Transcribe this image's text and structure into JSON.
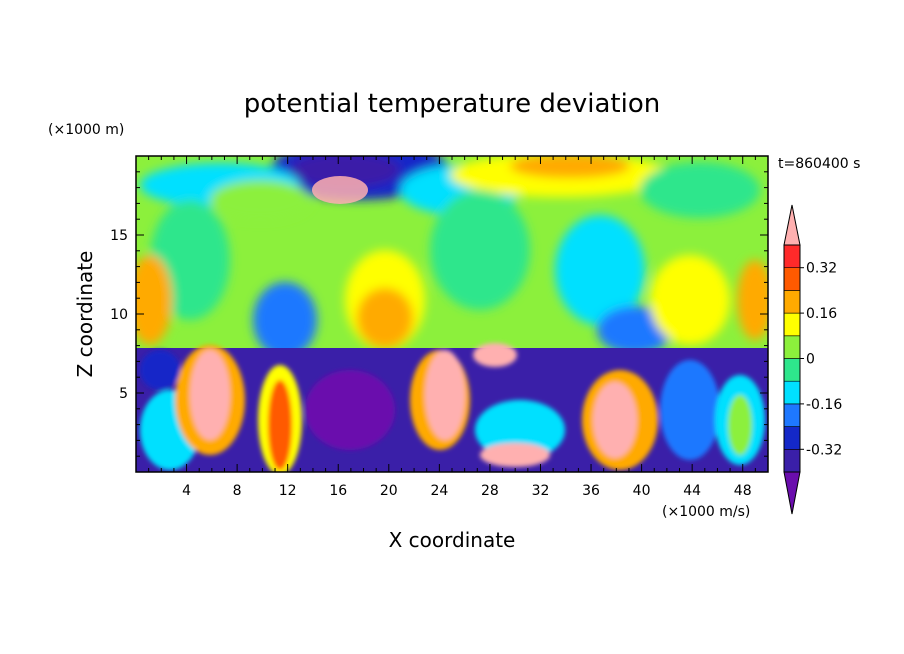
{
  "chart_data": {
    "type": "heatmap",
    "title": "potential temperature deviation",
    "xlabel": "X coordinate",
    "ylabel": "Z coordinate",
    "x_unit": "(×1000 m/s)",
    "y_unit": "(×1000 m)",
    "time_label": "t=860400 s",
    "xlim": [
      0,
      50
    ],
    "ylim": [
      0,
      20
    ],
    "x_ticks": [
      4,
      8,
      12,
      16,
      20,
      24,
      28,
      32,
      36,
      40,
      44,
      48
    ],
    "y_ticks": [
      5,
      10,
      15
    ],
    "colorbar": {
      "levels": [
        -0.4,
        -0.32,
        -0.24,
        -0.16,
        -0.08,
        0,
        0.08,
        0.16,
        0.24,
        0.32,
        0.4
      ],
      "colors": [
        "#6a0dad",
        "#3a1fa8",
        "#1428c8",
        "#1e78ff",
        "#00e0ff",
        "#2ee68c",
        "#8cf03c",
        "#ffff00",
        "#ffaa00",
        "#ff5a00",
        "#ff2a2a",
        "#ffb0b0"
      ],
      "tick_labels": [
        "0.32",
        "0.16",
        "0",
        "-0.16",
        "-0.32"
      ],
      "tick_values": [
        0.32,
        0.16,
        0,
        -0.16,
        -0.32
      ],
      "extend": "both"
    },
    "grid": false
  }
}
